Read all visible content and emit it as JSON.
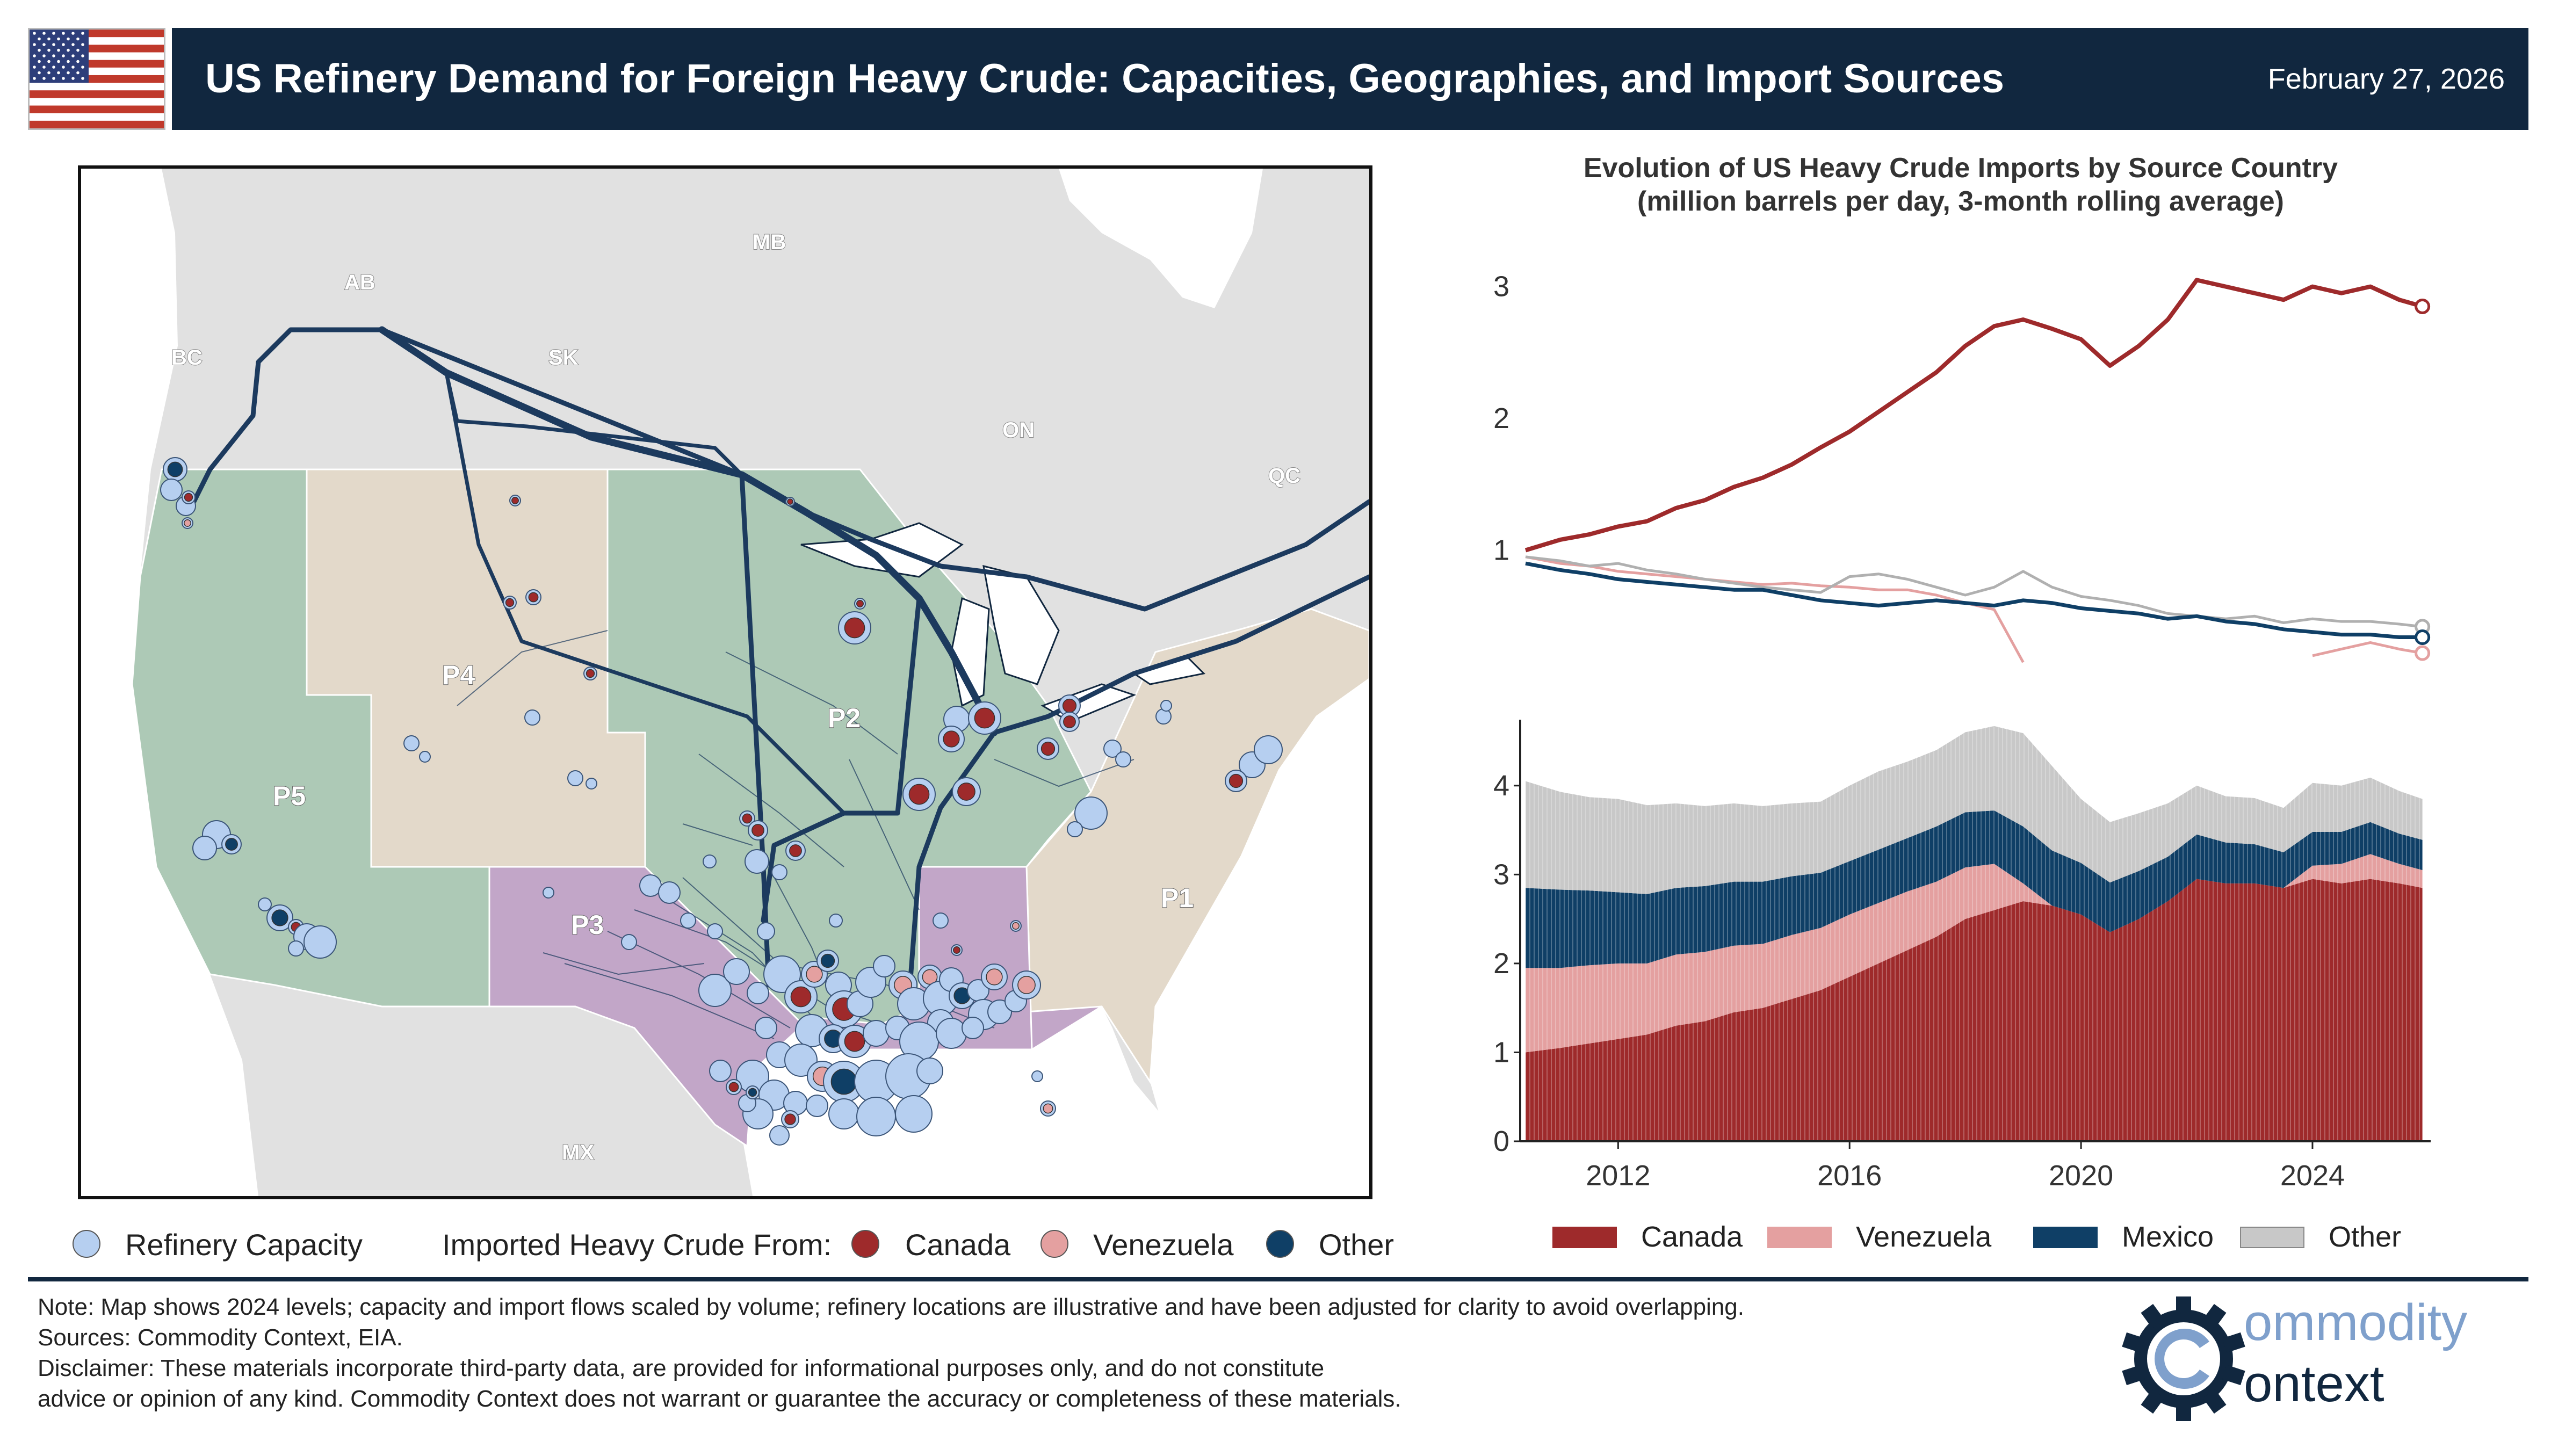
{
  "header": {
    "title": "US Refinery Demand for Foreign Heavy Crude: Capacities, Geographies, and Import Sources",
    "date": "February 27, 2026",
    "flag_icon": "us-flag-icon"
  },
  "colors": {
    "navy": "#11273f",
    "canada": "#9e2a2b",
    "venezuela": "#e4a0a0",
    "mexico": "#0f3f66",
    "other": "#c8c8c8",
    "capacity": "#b6cff0",
    "padd_green": "#adc9b6",
    "padd_tan": "#e3d9ca",
    "padd_purple": "#c2a6c8",
    "land_grey": "#e1e1e1"
  },
  "map": {
    "padd_labels": [
      "P1",
      "P2",
      "P3",
      "P4",
      "P5"
    ],
    "province_labels": [
      "BC",
      "AB",
      "SK",
      "MB",
      "ON",
      "QC",
      "MX"
    ],
    "legend": {
      "capacity": "Refinery Capacity",
      "imported_from": "Imported Heavy Crude From:",
      "canada": "Canada",
      "venezuela": "Venezuela",
      "other": "Other"
    }
  },
  "chart_data": [
    {
      "type": "line",
      "title": "Evolution of US Heavy Crude Imports by Source Country",
      "subtitle": "(million barrels per day, 3-month rolling average)",
      "x": [
        2010.4,
        2011.0,
        2011.5,
        2012.0,
        2012.5,
        2013.0,
        2013.5,
        2014.0,
        2014.5,
        2015.0,
        2015.5,
        2016.0,
        2016.5,
        2017.0,
        2017.5,
        2018.0,
        2018.5,
        2019.0,
        2019.5,
        2020.0,
        2020.5,
        2021.0,
        2021.5,
        2022.0,
        2022.5,
        2023.0,
        2023.5,
        2024.0,
        2024.5,
        2025.0,
        2025.5,
        2025.9
      ],
      "ylim": [
        0,
        3.3
      ],
      "yticks": [
        1,
        2,
        3
      ],
      "series": [
        {
          "name": "Canada",
          "values": [
            1.0,
            1.08,
            1.12,
            1.18,
            1.22,
            1.32,
            1.38,
            1.48,
            1.55,
            1.65,
            1.78,
            1.9,
            2.05,
            2.2,
            2.35,
            2.55,
            2.7,
            2.75,
            2.68,
            2.6,
            2.4,
            2.55,
            2.75,
            3.05,
            3.0,
            2.95,
            2.9,
            3.0,
            2.95,
            3.0,
            2.9,
            2.85
          ]
        },
        {
          "name": "Venezuela",
          "values": [
            0.95,
            0.9,
            0.88,
            0.84,
            0.82,
            0.8,
            0.78,
            0.76,
            0.74,
            0.75,
            0.73,
            0.72,
            0.7,
            0.7,
            0.66,
            0.6,
            0.55,
            0.15,
            null,
            null,
            null,
            null,
            null,
            null,
            null,
            null,
            null,
            0.2,
            0.25,
            0.3,
            0.25,
            0.22
          ]
        },
        {
          "name": "Other",
          "values": [
            0.95,
            0.92,
            0.88,
            0.9,
            0.85,
            0.82,
            0.78,
            0.75,
            0.72,
            0.7,
            0.68,
            0.8,
            0.82,
            0.78,
            0.72,
            0.66,
            0.72,
            0.84,
            0.72,
            0.65,
            0.62,
            0.58,
            0.52,
            0.5,
            0.48,
            0.5,
            0.45,
            0.48,
            0.46,
            0.46,
            0.44,
            0.42
          ]
        },
        {
          "name": "Mexico",
          "values": [
            0.9,
            0.85,
            0.82,
            0.78,
            0.76,
            0.74,
            0.72,
            0.7,
            0.7,
            0.66,
            0.62,
            0.6,
            0.58,
            0.6,
            0.62,
            0.6,
            0.58,
            0.62,
            0.6,
            0.56,
            0.54,
            0.52,
            0.48,
            0.5,
            0.46,
            0.44,
            0.4,
            0.38,
            0.36,
            0.36,
            0.34,
            0.34
          ]
        }
      ]
    },
    {
      "type": "area",
      "title": "",
      "x": [
        2010.4,
        2011.0,
        2011.5,
        2012.0,
        2012.5,
        2013.0,
        2013.5,
        2014.0,
        2014.5,
        2015.0,
        2015.5,
        2016.0,
        2016.5,
        2017.0,
        2017.5,
        2018.0,
        2018.5,
        2019.0,
        2019.5,
        2020.0,
        2020.5,
        2021.0,
        2021.5,
        2022.0,
        2022.5,
        2023.0,
        2023.5,
        2024.0,
        2024.5,
        2025.0,
        2025.5,
        2025.9
      ],
      "xticks": [
        2012,
        2016,
        2020,
        2024
      ],
      "yticks": [
        0,
        1,
        2,
        3,
        4
      ],
      "ylim": [
        0,
        4.5
      ],
      "stacked": true,
      "series": [
        {
          "name": "Canada",
          "values": [
            1.0,
            1.05,
            1.1,
            1.15,
            1.2,
            1.3,
            1.35,
            1.45,
            1.5,
            1.6,
            1.7,
            1.85,
            2.0,
            2.15,
            2.3,
            2.5,
            2.6,
            2.7,
            2.65,
            2.55,
            2.35,
            2.5,
            2.7,
            2.95,
            2.9,
            2.9,
            2.85,
            2.95,
            2.9,
            2.95,
            2.9,
            2.85
          ]
        },
        {
          "name": "Venezuela",
          "values": [
            0.95,
            0.9,
            0.88,
            0.85,
            0.8,
            0.8,
            0.78,
            0.75,
            0.72,
            0.72,
            0.7,
            0.7,
            0.68,
            0.66,
            0.62,
            0.58,
            0.52,
            0.2,
            0.0,
            0.0,
            0.0,
            0.0,
            0.0,
            0.0,
            0.0,
            0.0,
            0.0,
            0.15,
            0.22,
            0.28,
            0.22,
            0.2
          ]
        },
        {
          "name": "Mexico",
          "values": [
            0.9,
            0.88,
            0.84,
            0.8,
            0.78,
            0.75,
            0.74,
            0.72,
            0.7,
            0.66,
            0.62,
            0.6,
            0.6,
            0.6,
            0.62,
            0.62,
            0.6,
            0.64,
            0.62,
            0.58,
            0.56,
            0.54,
            0.5,
            0.5,
            0.46,
            0.44,
            0.4,
            0.38,
            0.36,
            0.36,
            0.34,
            0.34
          ]
        },
        {
          "name": "Other",
          "values": [
            1.2,
            1.1,
            1.05,
            1.05,
            1.0,
            0.95,
            0.9,
            0.88,
            0.85,
            0.82,
            0.8,
            0.85,
            0.88,
            0.86,
            0.86,
            0.9,
            0.95,
            1.05,
            0.95,
            0.72,
            0.68,
            0.65,
            0.6,
            0.55,
            0.52,
            0.52,
            0.5,
            0.55,
            0.52,
            0.5,
            0.48,
            0.46
          ]
        }
      ],
      "legend": [
        "Canada",
        "Venezuela",
        "Mexico",
        "Other"
      ],
      "legend_position": "bottom"
    }
  ],
  "footer": {
    "note": "Note: Map shows 2024 levels; capacity and import flows scaled by volume; refinery locations are illustrative and have been adjusted for clarity to avoid overlapping.",
    "sources": "Sources: Commodity Context, EIA.",
    "disclaimer_1": "Disclaimer: These materials incorporate third-party data, are provided for informational purposes only, and do not constitute",
    "disclaimer_2": "advice or opinion of any kind. Commodity Context does not warrant or guarantee the accuracy or completeness of these materials."
  },
  "logo": {
    "line1": "ommodity",
    "line2": "ontext",
    "icon": "gear-c-logo-icon"
  }
}
